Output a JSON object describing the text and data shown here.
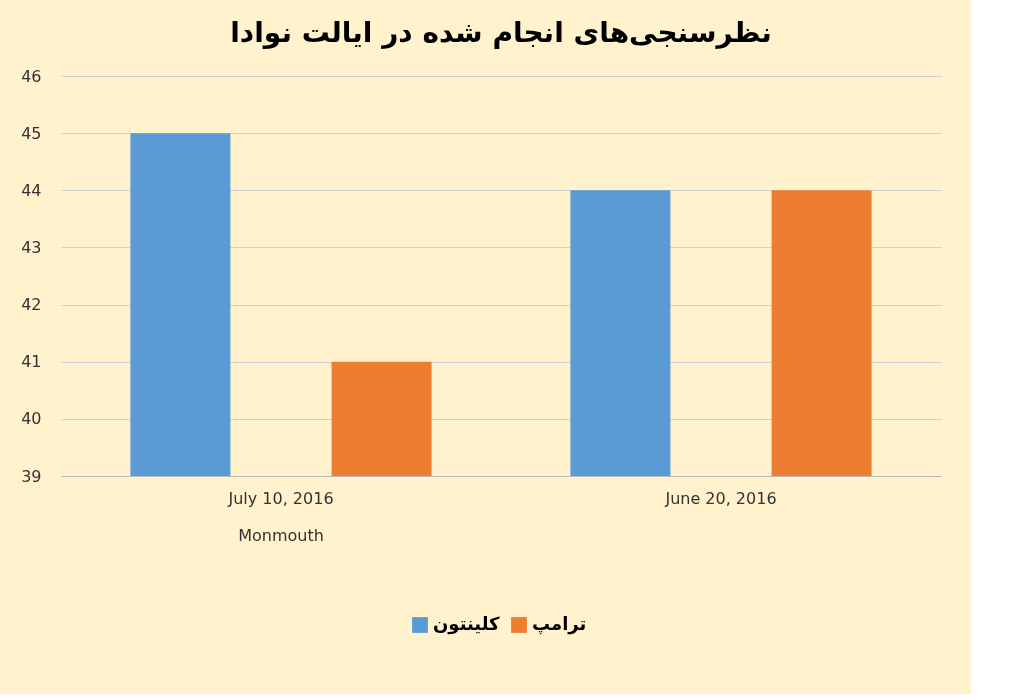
{
  "chart_data": {
    "type": "bar",
    "title": "نظرسنجی‌های انجام شده در ایالت نوادا",
    "categories": [
      "July 10, 2016",
      "June 20, 2016"
    ],
    "series": [
      {
        "name": "کلینتون",
        "color": "#5b9bd5",
        "values": [
          45,
          44
        ]
      },
      {
        "name": "ترامپ",
        "color": "#ed7d31",
        "values": [
          41,
          44
        ]
      }
    ],
    "ylim": [
      39,
      46
    ],
    "yticks": [
      39,
      40,
      41,
      42,
      43,
      44,
      45,
      46
    ],
    "grid": "y",
    "legend": "bottom",
    "annotations": [
      "Monmouth"
    ]
  }
}
